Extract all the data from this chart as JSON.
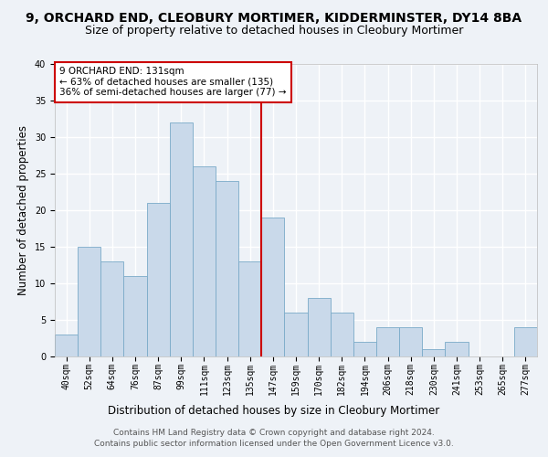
{
  "title": "9, ORCHARD END, CLEOBURY MORTIMER, KIDDERMINSTER, DY14 8BA",
  "subtitle": "Size of property relative to detached houses in Cleobury Mortimer",
  "xlabel": "Distribution of detached houses by size in Cleobury Mortimer",
  "ylabel": "Number of detached properties",
  "footer1": "Contains HM Land Registry data © Crown copyright and database right 2024.",
  "footer2": "Contains public sector information licensed under the Open Government Licence v3.0.",
  "bar_labels": [
    "40sqm",
    "52sqm",
    "64sqm",
    "76sqm",
    "87sqm",
    "99sqm",
    "111sqm",
    "123sqm",
    "135sqm",
    "147sqm",
    "159sqm",
    "170sqm",
    "182sqm",
    "194sqm",
    "206sqm",
    "218sqm",
    "230sqm",
    "241sqm",
    "253sqm",
    "265sqm",
    "277sqm"
  ],
  "bar_values": [
    3,
    15,
    13,
    11,
    21,
    32,
    26,
    24,
    13,
    19,
    6,
    8,
    6,
    2,
    4,
    4,
    1,
    2,
    0,
    0,
    4
  ],
  "bar_color": "#c9d9ea",
  "bar_edgecolor": "#7aaac8",
  "annotation_box_text": "9 ORCHARD END: 131sqm\n← 63% of detached houses are smaller (135)\n36% of semi-detached houses are larger (77) →",
  "annotation_box_color": "#ffffff",
  "annotation_box_edgecolor": "#cc0000",
  "vline_x": 8.5,
  "vline_color": "#cc0000",
  "ylim": [
    0,
    40
  ],
  "yticks": [
    0,
    5,
    10,
    15,
    20,
    25,
    30,
    35,
    40
  ],
  "bg_color": "#eef2f7",
  "grid_color": "#ffffff",
  "title_fontsize": 10,
  "subtitle_fontsize": 9,
  "xlabel_fontsize": 8.5,
  "ylabel_fontsize": 8.5,
  "tick_fontsize": 7,
  "annot_fontsize": 7.5,
  "footer_fontsize": 6.5
}
